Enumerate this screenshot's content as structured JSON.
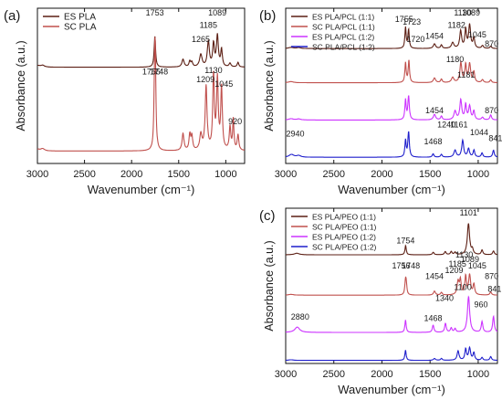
{
  "chart_data": [
    {
      "type": "line",
      "panel_label": "(a)",
      "xlabel": "Wavenumber (cm⁻¹)",
      "ylabel": "Absorbance (a.u.)",
      "xlim": [
        3000,
        800
      ],
      "x_reversed": true,
      "xticks": [
        3000,
        2500,
        2000,
        1500,
        1000
      ],
      "show_xticklabels": true,
      "show_xlabel": true,
      "show_ylabel": true,
      "legend_position": "top-left",
      "series": [
        {
          "name": "ES PLA",
          "color": "#5c1f14",
          "offset": 0.62,
          "scale": 0.2,
          "peaks": [
            [
              2995,
              0.05,
              25
            ],
            [
              2945,
              0.06,
              25
            ],
            [
              1753,
              1.0,
              9
            ],
            [
              1454,
              0.25,
              14
            ],
            [
              1382,
              0.18,
              10
            ],
            [
              1360,
              0.15,
              10
            ],
            [
              1265,
              0.4,
              16
            ],
            [
              1185,
              0.82,
              13
            ],
            [
              1130,
              0.72,
              11
            ],
            [
              1089,
              1.0,
              12
            ],
            [
              1045,
              0.55,
              10
            ],
            [
              955,
              0.12,
              12
            ],
            [
              870,
              0.15,
              10
            ]
          ]
        },
        {
          "name": "SC PLA",
          "color": "#c0504d",
          "offset": 0.08,
          "scale": 0.5,
          "peaks": [
            [
              2995,
              0.02,
              25
            ],
            [
              2945,
              0.03,
              25
            ],
            [
              1755,
              0.9,
              8
            ],
            [
              1748,
              0.85,
              8
            ],
            [
              1454,
              0.22,
              12
            ],
            [
              1382,
              0.2,
              10
            ],
            [
              1360,
              0.18,
              10
            ],
            [
              1265,
              0.2,
              14
            ],
            [
              1209,
              0.82,
              12
            ],
            [
              1130,
              0.95,
              10
            ],
            [
              1089,
              0.9,
              11
            ],
            [
              1045,
              0.8,
              10
            ],
            [
              955,
              0.3,
              10
            ],
            [
              920,
              0.4,
              8
            ],
            [
              870,
              0.2,
              10
            ]
          ]
        }
      ],
      "annotations": [
        {
          "text": "1753",
          "x": 1753,
          "y": 1.0
        },
        {
          "text": "1089",
          "x": 1089,
          "y": 1.0
        },
        {
          "text": "1185",
          "x": 1185,
          "y": 0.92
        },
        {
          "text": "1265",
          "x": 1265,
          "y": 0.83
        },
        {
          "text": "1755",
          "x": 1790,
          "y": 0.62
        },
        {
          "text": "1748",
          "x": 1710,
          "y": 0.62
        },
        {
          "text": "1130",
          "x": 1130,
          "y": 0.63
        },
        {
          "text": "1209",
          "x": 1215,
          "y": 0.57
        },
        {
          "text": "1045",
          "x": 1020,
          "y": 0.54
        },
        {
          "text": "920",
          "x": 900,
          "y": 0.3
        }
      ]
    },
    {
      "type": "line",
      "panel_label": "(b)",
      "xlabel": "Wavenumber (cm⁻¹)",
      "ylabel": "Absorbance (a.u.)",
      "xlim": [
        3000,
        800
      ],
      "x_reversed": true,
      "xticks": [
        3000,
        2500,
        2000,
        1500,
        1000
      ],
      "show_xticklabels": true,
      "show_xlabel": true,
      "show_ylabel": true,
      "legend_position": "top-left",
      "series": [
        {
          "name": "ES PLA/PCL (1:1)",
          "color": "#5c1f14",
          "offset": 0.74,
          "scale": 0.15,
          "peaks": [
            [
              2945,
              0.05,
              30
            ],
            [
              2865,
              0.04,
              25
            ],
            [
              1755,
              0.9,
              8
            ],
            [
              1723,
              0.8,
              8
            ],
            [
              1454,
              0.2,
              14
            ],
            [
              1382,
              0.15,
              10
            ],
            [
              1265,
              0.25,
              15
            ],
            [
              1182,
              0.75,
              12
            ],
            [
              1130,
              0.8,
              10
            ],
            [
              1089,
              1.0,
              12
            ],
            [
              1045,
              0.45,
              10
            ],
            [
              955,
              0.12,
              12
            ],
            [
              870,
              0.1,
              10
            ]
          ]
        },
        {
          "name": "SC PLA/PCL (1:1)",
          "color": "#c0504d",
          "offset": 0.52,
          "scale": 0.15,
          "peaks": [
            [
              2945,
              0.05,
              30
            ],
            [
              1755,
              0.85,
              8
            ],
            [
              1720,
              0.95,
              8
            ],
            [
              1454,
              0.2,
              14
            ],
            [
              1382,
              0.15,
              10
            ],
            [
              1265,
              0.22,
              15
            ],
            [
              1180,
              0.85,
              12
            ],
            [
              1130,
              0.75,
              10
            ],
            [
              1089,
              0.8,
              12
            ],
            [
              1045,
              0.45,
              10
            ],
            [
              955,
              0.12,
              12
            ],
            [
              870,
              0.12,
              10
            ]
          ]
        },
        {
          "name": "ES PLA/PCL (1:2)",
          "color": "#cc33ff",
          "offset": 0.28,
          "scale": 0.16,
          "peaks": [
            [
              2945,
              0.05,
              30
            ],
            [
              2865,
              0.04,
              25
            ],
            [
              1755,
              0.8,
              8
            ],
            [
              1723,
              0.95,
              9
            ],
            [
              1454,
              0.22,
              14
            ],
            [
              1382,
              0.15,
              10
            ],
            [
              1240,
              0.35,
              14
            ],
            [
              1181,
              0.8,
              12
            ],
            [
              1130,
              0.6,
              10
            ],
            [
              1089,
              0.55,
              12
            ],
            [
              1045,
              0.35,
              10
            ],
            [
              955,
              0.1,
              12
            ],
            [
              870,
              0.2,
              10
            ]
          ]
        },
        {
          "name": "SC PLA/PCL (1:2)",
          "color": "#1f1fcc",
          "offset": 0.04,
          "scale": 0.18,
          "peaks": [
            [
              2940,
              0.1,
              30
            ],
            [
              2865,
              0.06,
              25
            ],
            [
              1755,
              0.6,
              8
            ],
            [
              1723,
              0.9,
              9
            ],
            [
              1468,
              0.12,
              10
            ],
            [
              1382,
              0.1,
              10
            ],
            [
              1240,
              0.25,
              14
            ],
            [
              1161,
              0.6,
              12
            ],
            [
              1100,
              0.3,
              12
            ],
            [
              1044,
              0.25,
              10
            ],
            [
              960,
              0.15,
              10
            ],
            [
              841,
              0.25,
              10
            ]
          ]
        }
      ],
      "annotations": [
        {
          "text": "1755",
          "x": 1770,
          "y": 0.96
        },
        {
          "text": "1723",
          "x": 1690,
          "y": 0.94
        },
        {
          "text": "1130",
          "x": 1160,
          "y": 1.0
        },
        {
          "text": "1089",
          "x": 1075,
          "y": 1.0
        },
        {
          "text": "1182",
          "x": 1225,
          "y": 0.92
        },
        {
          "text": "1454",
          "x": 1454,
          "y": 0.85
        },
        {
          "text": "1720",
          "x": 1650,
          "y": 0.83
        },
        {
          "text": "1045",
          "x": 1010,
          "y": 0.86
        },
        {
          "text": "870",
          "x": 860,
          "y": 0.8
        },
        {
          "text": "1180",
          "x": 1240,
          "y": 0.7
        },
        {
          "text": "1181",
          "x": 1125,
          "y": 0.6
        },
        {
          "text": "1454",
          "x": 1454,
          "y": 0.37
        },
        {
          "text": "870",
          "x": 860,
          "y": 0.37
        },
        {
          "text": "1240",
          "x": 1330,
          "y": 0.28
        },
        {
          "text": "1161",
          "x": 1200,
          "y": 0.28
        },
        {
          "text": "1468",
          "x": 1468,
          "y": 0.17
        },
        {
          "text": "1044",
          "x": 990,
          "y": 0.23
        },
        {
          "text": "841",
          "x": 820,
          "y": 0.19
        },
        {
          "text": "2940",
          "x": 2900,
          "y": 0.22
        }
      ]
    },
    {
      "type": "line",
      "panel_label": "(c)",
      "xlabel": "Wavenumber (cm⁻¹)",
      "ylabel": "Absorbance (a.u.)",
      "xlim": [
        3000,
        800
      ],
      "x_reversed": true,
      "xticks": [
        3000,
        2500,
        2000,
        1500,
        1000
      ],
      "show_xticklabels": true,
      "show_xlabel": true,
      "show_ylabel": true,
      "legend_position": "top-left",
      "series": [
        {
          "name": "ES PLA/PEO (1:1)",
          "color": "#5c1f14",
          "offset": 0.7,
          "scale": 0.2,
          "peaks": [
            [
              2885,
              0.05,
              30
            ],
            [
              1754,
              0.3,
              8
            ],
            [
              1467,
              0.08,
              10
            ],
            [
              1342,
              0.1,
              10
            ],
            [
              1280,
              0.1,
              10
            ],
            [
              1240,
              0.08,
              10
            ],
            [
              1101,
              1.0,
              14
            ],
            [
              1060,
              0.15,
              10
            ],
            [
              960,
              0.15,
              10
            ],
            [
              841,
              0.12,
              10
            ]
          ]
        },
        {
          "name": "SC PLA/PEO (1:1)",
          "color": "#c0504d",
          "offset": 0.44,
          "scale": 0.17,
          "peaks": [
            [
              2945,
              0.03,
              30
            ],
            [
              1756,
              0.45,
              8
            ],
            [
              1748,
              0.4,
              8
            ],
            [
              1454,
              0.15,
              12
            ],
            [
              1382,
              0.1,
              10
            ],
            [
              1209,
              0.5,
              12
            ],
            [
              1185,
              0.55,
              10
            ],
            [
              1130,
              0.7,
              10
            ],
            [
              1089,
              0.75,
              12
            ],
            [
              1045,
              0.4,
              10
            ],
            [
              870,
              0.12,
              10
            ]
          ]
        },
        {
          "name": "ES PLA/PEO (1:2)",
          "color": "#cc33ff",
          "offset": 0.2,
          "scale": 0.23,
          "peaks": [
            [
              2880,
              0.15,
              30
            ],
            [
              1755,
              0.35,
              8
            ],
            [
              1468,
              0.2,
              10
            ],
            [
              1340,
              0.25,
              10
            ],
            [
              1280,
              0.12,
              10
            ],
            [
              1240,
              0.1,
              10
            ],
            [
              1100,
              1.0,
              14
            ],
            [
              960,
              0.3,
              10
            ],
            [
              841,
              0.45,
              10
            ]
          ]
        },
        {
          "name": "SC PLA/PEO (1:2)",
          "color": "#1f1fcc",
          "offset": 0.02,
          "scale": 0.12,
          "peaks": [
            [
              2945,
              0.03,
              30
            ],
            [
              1755,
              0.55,
              8
            ],
            [
              1454,
              0.1,
              12
            ],
            [
              1382,
              0.1,
              10
            ],
            [
              1209,
              0.5,
              12
            ],
            [
              1130,
              0.6,
              10
            ],
            [
              1089,
              0.65,
              12
            ],
            [
              1045,
              0.4,
              10
            ],
            [
              960,
              0.15,
              10
            ],
            [
              870,
              0.2,
              10
            ]
          ]
        }
      ],
      "annotations": [
        {
          "text": "1101",
          "x": 1101,
          "y": 1.0
        },
        {
          "text": "1754",
          "x": 1754,
          "y": 0.82
        },
        {
          "text": "1130",
          "x": 1145,
          "y": 0.73
        },
        {
          "text": "1089",
          "x": 1085,
          "y": 0.7
        },
        {
          "text": "1185",
          "x": 1215,
          "y": 0.67
        },
        {
          "text": "1756",
          "x": 1800,
          "y": 0.66
        },
        {
          "text": "1748",
          "x": 1700,
          "y": 0.66
        },
        {
          "text": "1045",
          "x": 1010,
          "y": 0.66
        },
        {
          "text": "1209",
          "x": 1250,
          "y": 0.63
        },
        {
          "text": "1454",
          "x": 1454,
          "y": 0.59
        },
        {
          "text": "870",
          "x": 860,
          "y": 0.59
        },
        {
          "text": "1100",
          "x": 1160,
          "y": 0.52
        },
        {
          "text": "1340",
          "x": 1350,
          "y": 0.45
        },
        {
          "text": "960",
          "x": 970,
          "y": 0.41
        },
        {
          "text": "841",
          "x": 830,
          "y": 0.51
        },
        {
          "text": "1468",
          "x": 1468,
          "y": 0.32
        },
        {
          "text": "2880",
          "x": 2850,
          "y": 0.33
        }
      ]
    }
  ]
}
